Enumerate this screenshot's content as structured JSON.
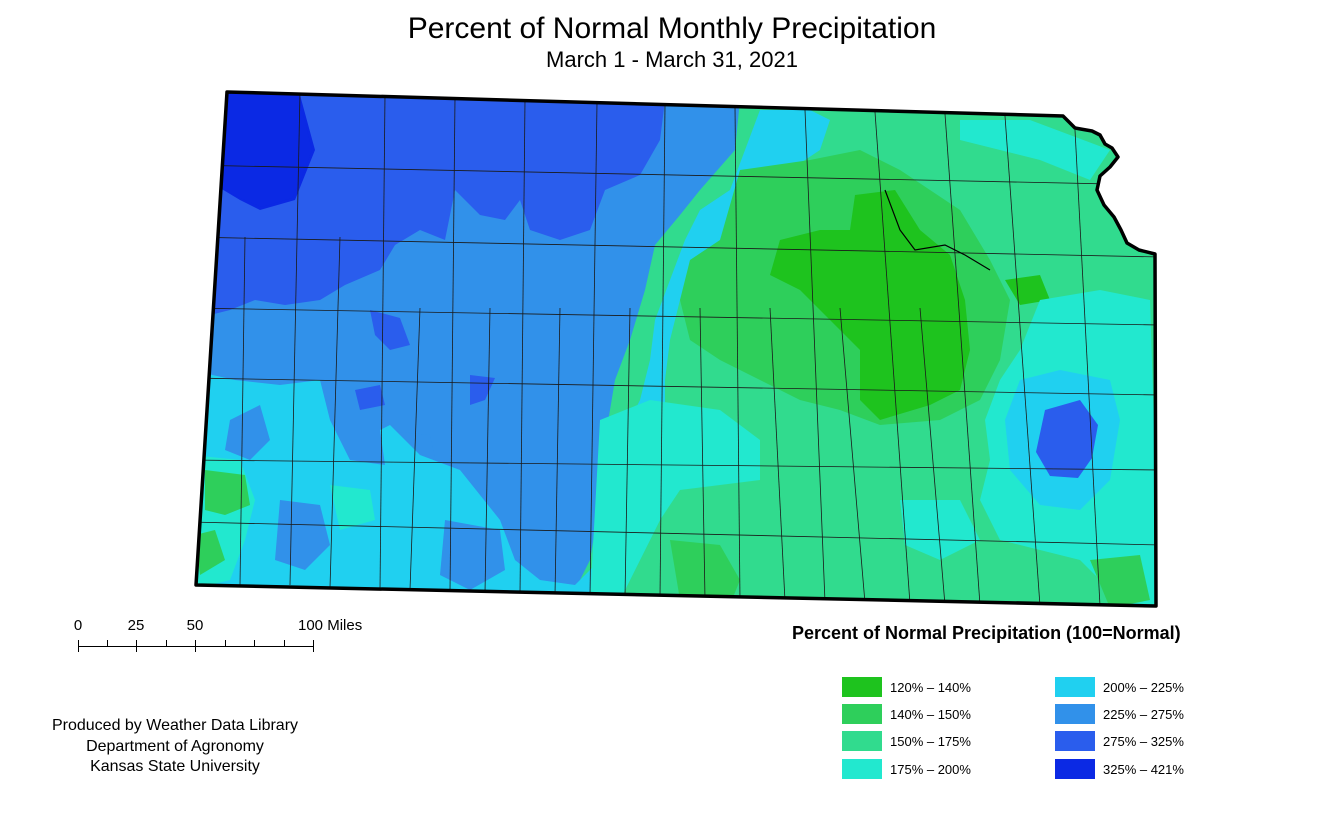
{
  "title": "Percent of Normal Monthly Precipitation",
  "subtitle": "March 1 - March 31, 2021",
  "scale_bar": {
    "ticks": [
      "0",
      "25",
      "50"
    ],
    "end_label": "100 Miles"
  },
  "credits": {
    "line1": "Produced by Weather Data Library",
    "line2": "Department of Agronomy",
    "line3": "Kansas State University"
  },
  "legend": {
    "title": "Percent of Normal Precipitation (100=Normal)",
    "items": [
      {
        "label": "120% – 140%",
        "color": "#1ec31e"
      },
      {
        "label": "140% – 150%",
        "color": "#2ecf5b"
      },
      {
        "label": "150% – 175%",
        "color": "#31db8e"
      },
      {
        "label": "175% – 200%",
        "color": "#22e8cf"
      },
      {
        "label": "200% – 225%",
        "color": "#20d0f0"
      },
      {
        "label": "225% – 275%",
        "color": "#3191ea"
      },
      {
        "label": "275% – 325%",
        "color": "#2a5ded"
      },
      {
        "label": "325% – 421%",
        "color": "#0b29e4"
      }
    ]
  }
}
